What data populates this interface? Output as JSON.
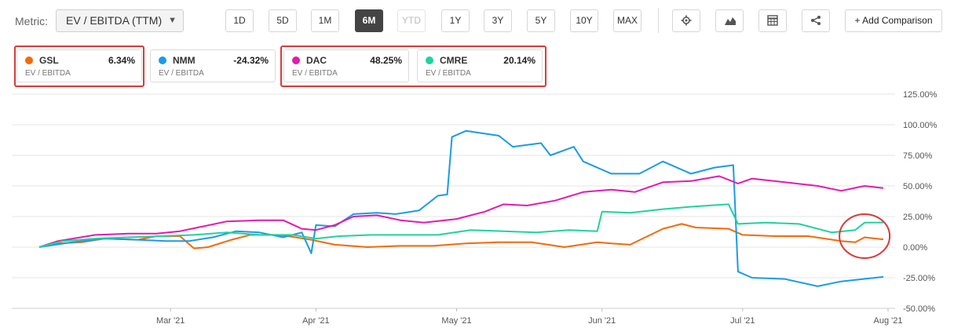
{
  "toolbar": {
    "metric_label": "Metric:",
    "metric_value": "EV / EBITDA (TTM)",
    "ranges": [
      {
        "label": "1D",
        "state": "enabled"
      },
      {
        "label": "5D",
        "state": "enabled"
      },
      {
        "label": "1M",
        "state": "enabled"
      },
      {
        "label": "6M",
        "state": "active"
      },
      {
        "label": "YTD",
        "state": "disabled"
      },
      {
        "label": "1Y",
        "state": "enabled"
      },
      {
        "label": "3Y",
        "state": "enabled"
      },
      {
        "label": "5Y",
        "state": "enabled"
      },
      {
        "label": "10Y",
        "state": "enabled"
      },
      {
        "label": "MAX",
        "state": "enabled"
      }
    ],
    "icons": [
      "gear-icon",
      "area-chart-icon",
      "table-icon",
      "share-icon"
    ],
    "add_comparison_label": "+ Add Comparison"
  },
  "legend_cards": [
    {
      "ticker": "GSL",
      "change": "6.34%",
      "metric": "EV / EBITDA",
      "color": "#f26a0a"
    },
    {
      "ticker": "NMM",
      "change": "-24.32%",
      "metric": "EV / EBITDA",
      "color": "#1a9be8"
    },
    {
      "ticker": "DAC",
      "change": "48.25%",
      "metric": "EV / EBITDA",
      "color": "#e21ab0"
    },
    {
      "ticker": "CMRE",
      "change": "20.14%",
      "metric": "EV / EBITDA",
      "color": "#1fd39c"
    }
  ],
  "chart_data": {
    "type": "line",
    "title": "",
    "xlabel": "",
    "ylabel": "",
    "x_ticks": [
      "Mar '21",
      "Apr '21",
      "May '21",
      "Jun '21",
      "Jul '21",
      "Aug '21"
    ],
    "y_ticks": [
      "125.00%",
      "100.00%",
      "75.00%",
      "50.00%",
      "25.00%",
      "0.00%",
      "-25.00%",
      "-50.00%"
    ],
    "ylim": [
      -50,
      125
    ],
    "x_range": [
      "2021-02-01",
      "2021-07-31"
    ],
    "grid": "horizontal",
    "series": [
      {
        "name": "GSL",
        "color": "#f26a0a",
        "points": [
          [
            "2021-02-01",
            0
          ],
          [
            "2021-02-05",
            3
          ],
          [
            "2021-02-10",
            4
          ],
          [
            "2021-02-15",
            7
          ],
          [
            "2021-02-22",
            6
          ],
          [
            "2021-02-26",
            9
          ],
          [
            "2021-03-03",
            9
          ],
          [
            "2021-03-06",
            -1
          ],
          [
            "2021-03-09",
            0
          ],
          [
            "2021-03-14",
            6
          ],
          [
            "2021-03-18",
            10
          ],
          [
            "2021-03-23",
            10
          ],
          [
            "2021-03-26",
            9
          ],
          [
            "2021-03-31",
            6
          ],
          [
            "2021-04-05",
            2
          ],
          [
            "2021-04-12",
            0
          ],
          [
            "2021-04-19",
            1
          ],
          [
            "2021-04-26",
            1
          ],
          [
            "2021-05-03",
            3
          ],
          [
            "2021-05-10",
            4
          ],
          [
            "2021-05-17",
            4
          ],
          [
            "2021-05-24",
            0
          ],
          [
            "2021-05-31",
            4
          ],
          [
            "2021-06-03",
            3
          ],
          [
            "2021-06-07",
            2
          ],
          [
            "2021-06-14",
            15
          ],
          [
            "2021-06-18",
            19
          ],
          [
            "2021-06-21",
            16
          ],
          [
            "2021-06-28",
            15
          ],
          [
            "2021-07-01",
            10
          ],
          [
            "2021-07-08",
            9
          ],
          [
            "2021-07-15",
            9
          ],
          [
            "2021-07-22",
            5
          ],
          [
            "2021-07-25",
            4
          ],
          [
            "2021-07-27",
            8
          ],
          [
            "2021-07-31",
            6.34
          ]
        ]
      },
      {
        "name": "NMM",
        "color": "#1a9be8",
        "points": [
          [
            "2021-02-01",
            0
          ],
          [
            "2021-02-08",
            4
          ],
          [
            "2021-02-15",
            7
          ],
          [
            "2021-02-22",
            6
          ],
          [
            "2021-02-28",
            5
          ],
          [
            "2021-03-05",
            5
          ],
          [
            "2021-03-10",
            8
          ],
          [
            "2021-03-15",
            13
          ],
          [
            "2021-03-20",
            12
          ],
          [
            "2021-03-25",
            8
          ],
          [
            "2021-03-29",
            12
          ],
          [
            "2021-03-31",
            -5
          ],
          [
            "2021-04-01",
            18
          ],
          [
            "2021-04-05",
            17
          ],
          [
            "2021-04-09",
            27
          ],
          [
            "2021-04-14",
            28
          ],
          [
            "2021-04-18",
            27
          ],
          [
            "2021-04-23",
            30
          ],
          [
            "2021-04-27",
            42
          ],
          [
            "2021-04-29",
            43
          ],
          [
            "2021-04-30",
            90
          ],
          [
            "2021-05-03",
            95
          ],
          [
            "2021-05-10",
            91
          ],
          [
            "2021-05-13",
            82
          ],
          [
            "2021-05-19",
            85
          ],
          [
            "2021-05-21",
            75
          ],
          [
            "2021-05-26",
            82
          ],
          [
            "2021-05-28",
            70
          ],
          [
            "2021-06-03",
            60
          ],
          [
            "2021-06-09",
            60
          ],
          [
            "2021-06-14",
            70
          ],
          [
            "2021-06-20",
            60
          ],
          [
            "2021-06-25",
            65
          ],
          [
            "2021-06-29",
            67
          ],
          [
            "2021-06-30",
            -20
          ],
          [
            "2021-07-03",
            -25
          ],
          [
            "2021-07-10",
            -26
          ],
          [
            "2021-07-17",
            -32
          ],
          [
            "2021-07-22",
            -28
          ],
          [
            "2021-07-31",
            -24.32
          ]
        ]
      },
      {
        "name": "DAC",
        "color": "#e21ab0",
        "points": [
          [
            "2021-02-01",
            0
          ],
          [
            "2021-02-05",
            5
          ],
          [
            "2021-02-13",
            10
          ],
          [
            "2021-02-20",
            11
          ],
          [
            "2021-02-26",
            11
          ],
          [
            "2021-03-03",
            13
          ],
          [
            "2021-03-08",
            17
          ],
          [
            "2021-03-13",
            21
          ],
          [
            "2021-03-20",
            22
          ],
          [
            "2021-03-25",
            22
          ],
          [
            "2021-03-29",
            15
          ],
          [
            "2021-04-01",
            14
          ],
          [
            "2021-04-05",
            18
          ],
          [
            "2021-04-09",
            25
          ],
          [
            "2021-04-14",
            26
          ],
          [
            "2021-04-19",
            22
          ],
          [
            "2021-04-24",
            20
          ],
          [
            "2021-05-01",
            23
          ],
          [
            "2021-05-07",
            29
          ],
          [
            "2021-05-11",
            35
          ],
          [
            "2021-05-16",
            34
          ],
          [
            "2021-05-22",
            38
          ],
          [
            "2021-05-28",
            45
          ],
          [
            "2021-06-03",
            47
          ],
          [
            "2021-06-08",
            45
          ],
          [
            "2021-06-14",
            53
          ],
          [
            "2021-06-20",
            54
          ],
          [
            "2021-06-26",
            58
          ],
          [
            "2021-06-30",
            52
          ],
          [
            "2021-07-03",
            56
          ],
          [
            "2021-07-10",
            53
          ],
          [
            "2021-07-17",
            50
          ],
          [
            "2021-07-22",
            46
          ],
          [
            "2021-07-27",
            50
          ],
          [
            "2021-07-31",
            48.25
          ]
        ]
      },
      {
        "name": "CMRE",
        "color": "#1fd39c",
        "points": [
          [
            "2021-02-01",
            0
          ],
          [
            "2021-02-06",
            5
          ],
          [
            "2021-02-13",
            7
          ],
          [
            "2021-02-20",
            8
          ],
          [
            "2021-02-27",
            9
          ],
          [
            "2021-03-06",
            10
          ],
          [
            "2021-03-13",
            12
          ],
          [
            "2021-03-20",
            10
          ],
          [
            "2021-03-27",
            10
          ],
          [
            "2021-04-01",
            7
          ],
          [
            "2021-04-06",
            9
          ],
          [
            "2021-04-13",
            10
          ],
          [
            "2021-04-20",
            10
          ],
          [
            "2021-04-27",
            10
          ],
          [
            "2021-05-04",
            14
          ],
          [
            "2021-05-11",
            13
          ],
          [
            "2021-05-18",
            12
          ],
          [
            "2021-05-25",
            14
          ],
          [
            "2021-05-31",
            13
          ],
          [
            "2021-06-01",
            29
          ],
          [
            "2021-06-07",
            28
          ],
          [
            "2021-06-14",
            31
          ],
          [
            "2021-06-20",
            33
          ],
          [
            "2021-06-28",
            35
          ],
          [
            "2021-06-30",
            19
          ],
          [
            "2021-07-06",
            20
          ],
          [
            "2021-07-13",
            19
          ],
          [
            "2021-07-20",
            12
          ],
          [
            "2021-07-25",
            14
          ],
          [
            "2021-07-27",
            20
          ],
          [
            "2021-07-31",
            20.14
          ]
        ]
      }
    ]
  }
}
